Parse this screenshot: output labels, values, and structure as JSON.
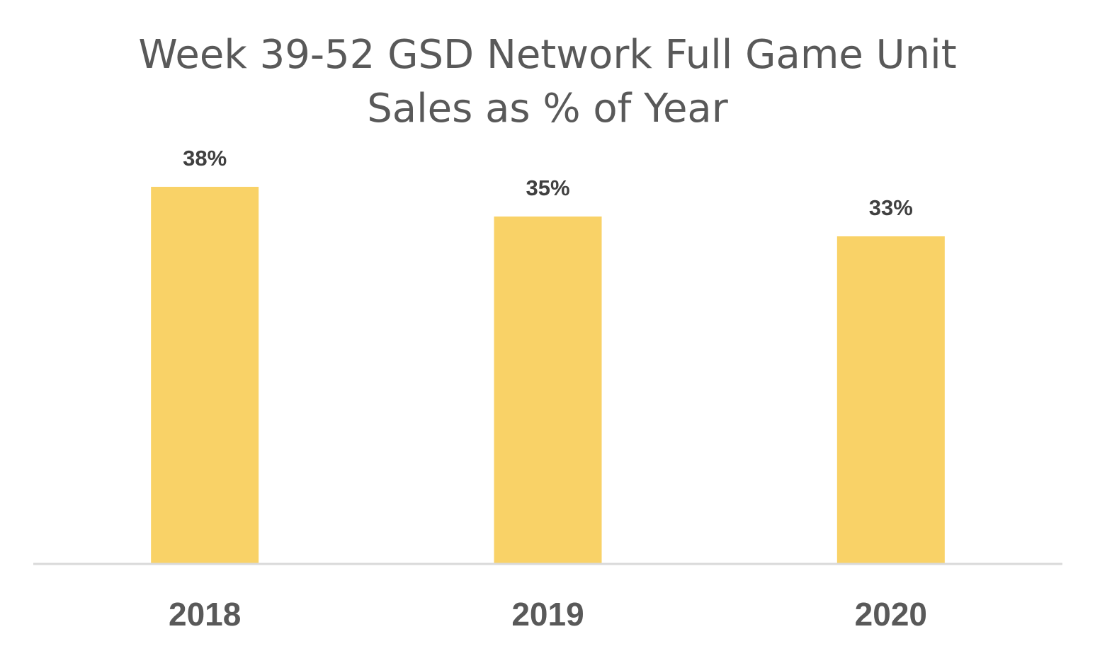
{
  "chart_data": {
    "type": "bar",
    "title_lines": [
      "Week 39-52 GSD Network Full Game Unit",
      "Sales as % of Year"
    ],
    "categories": [
      "2018",
      "2019",
      "2020"
    ],
    "values": [
      38,
      35,
      33
    ],
    "data_labels": [
      "38%",
      "35%",
      "33%"
    ],
    "ylim": [
      0,
      38
    ],
    "grid": false,
    "legend": "none",
    "bar_color": "#F9D267",
    "axis_color": "#D9D9D9"
  }
}
